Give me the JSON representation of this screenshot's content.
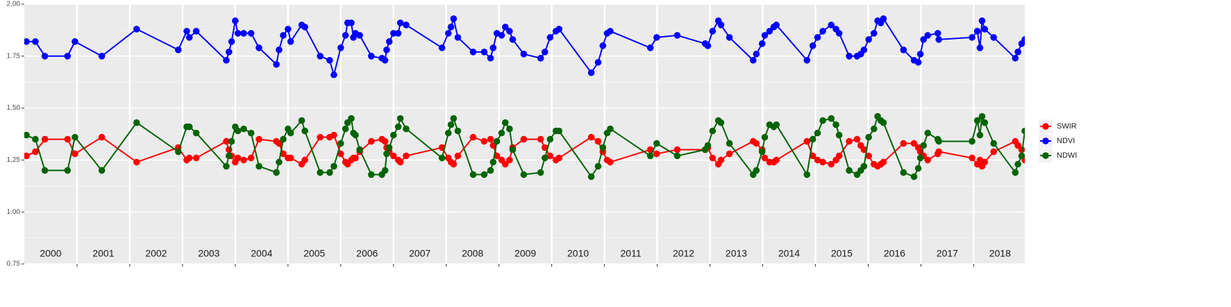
{
  "chart_data": {
    "type": "line",
    "x": [
      2000.04,
      2000.21,
      2000.39,
      2000.82,
      2000.96,
      2001.47,
      2002.13,
      2002.92,
      2003.08,
      2003.13,
      2003.26,
      2003.83,
      2003.88,
      2003.93,
      2004.0,
      2004.05,
      2004.16,
      2004.3,
      2004.45,
      2004.78,
      2004.83,
      2004.91,
      2005.0,
      2005.05,
      2005.26,
      2005.32,
      2005.61,
      2005.79,
      2005.87,
      2006.0,
      2006.09,
      2006.13,
      2006.2,
      2006.24,
      2006.28,
      2006.36,
      2006.58,
      2006.78,
      2006.84,
      2006.87,
      2006.92,
      2007.0,
      2007.09,
      2007.13,
      2007.24,
      2007.92,
      2008.04,
      2008.09,
      2008.14,
      2008.22,
      2008.51,
      2008.72,
      2008.84,
      2008.89,
      2008.96,
      2009.05,
      2009.12,
      2009.2,
      2009.26,
      2009.47,
      2009.79,
      2009.87,
      2009.97,
      2010.08,
      2010.14,
      2010.75,
      2010.88,
      2010.97,
      2011.05,
      2011.11,
      2011.87,
      2011.99,
      2012.38,
      2012.91,
      2012.96,
      2013.05,
      2013.16,
      2013.21,
      2013.37,
      2013.82,
      2013.88,
      2013.99,
      2014.04,
      2014.13,
      2014.21,
      2014.26,
      2014.84,
      2014.95,
      2015.04,
      2015.14,
      2015.3,
      2015.39,
      2015.45,
      2015.64,
      2015.79,
      2015.86,
      2015.92,
      2016.01,
      2016.11,
      2016.18,
      2016.24,
      2016.29,
      2016.67,
      2016.87,
      2016.95,
      2016.99,
      2017.05,
      2017.13,
      2017.32,
      2017.34,
      2017.97,
      2018.07,
      2018.12,
      2018.16,
      2018.21,
      2018.38,
      2018.79,
      2018.84,
      2018.91,
      2018.97
    ],
    "series": [
      {
        "name": "SWIR",
        "color": "#ff0000",
        "values": [
          1.27,
          1.29,
          1.35,
          1.35,
          1.28,
          1.36,
          1.24,
          1.31,
          1.25,
          1.26,
          1.26,
          1.34,
          1.3,
          1.27,
          1.24,
          1.26,
          1.25,
          1.26,
          1.35,
          1.34,
          1.33,
          1.28,
          1.26,
          1.26,
          1.23,
          1.25,
          1.36,
          1.36,
          1.37,
          1.28,
          1.24,
          1.23,
          1.25,
          1.26,
          1.26,
          1.29,
          1.34,
          1.35,
          1.34,
          1.31,
          1.29,
          1.27,
          1.25,
          1.24,
          1.27,
          1.31,
          1.26,
          1.24,
          1.23,
          1.27,
          1.36,
          1.34,
          1.35,
          1.32,
          1.27,
          1.25,
          1.23,
          1.25,
          1.31,
          1.35,
          1.35,
          1.31,
          1.27,
          1.25,
          1.26,
          1.36,
          1.34,
          1.29,
          1.25,
          1.24,
          1.3,
          1.28,
          1.3,
          1.3,
          1.31,
          1.26,
          1.23,
          1.25,
          1.28,
          1.34,
          1.33,
          1.3,
          1.26,
          1.24,
          1.24,
          1.25,
          1.34,
          1.27,
          1.25,
          1.24,
          1.23,
          1.25,
          1.27,
          1.34,
          1.35,
          1.32,
          1.3,
          1.27,
          1.23,
          1.22,
          1.23,
          1.24,
          1.33,
          1.33,
          1.31,
          1.29,
          1.27,
          1.25,
          1.28,
          1.29,
          1.26,
          1.23,
          1.25,
          1.22,
          1.24,
          1.29,
          1.34,
          1.32,
          1.3,
          1.25
        ]
      },
      {
        "name": "NDVI",
        "color": "#0000ff",
        "values": [
          1.82,
          1.82,
          1.75,
          1.75,
          1.82,
          1.75,
          1.88,
          1.78,
          1.87,
          1.84,
          1.87,
          1.73,
          1.77,
          1.82,
          1.92,
          1.86,
          1.86,
          1.86,
          1.79,
          1.71,
          1.78,
          1.85,
          1.88,
          1.82,
          1.9,
          1.89,
          1.75,
          1.73,
          1.66,
          1.79,
          1.85,
          1.91,
          1.91,
          1.84,
          1.86,
          1.85,
          1.75,
          1.74,
          1.73,
          1.78,
          1.82,
          1.86,
          1.86,
          1.91,
          1.9,
          1.79,
          1.86,
          1.89,
          1.93,
          1.84,
          1.77,
          1.77,
          1.74,
          1.79,
          1.86,
          1.85,
          1.89,
          1.87,
          1.83,
          1.76,
          1.74,
          1.77,
          1.84,
          1.87,
          1.88,
          1.67,
          1.72,
          1.8,
          1.86,
          1.87,
          1.79,
          1.84,
          1.85,
          1.81,
          1.8,
          1.87,
          1.92,
          1.9,
          1.84,
          1.73,
          1.76,
          1.81,
          1.85,
          1.87,
          1.89,
          1.9,
          1.73,
          1.8,
          1.84,
          1.87,
          1.9,
          1.88,
          1.86,
          1.75,
          1.75,
          1.76,
          1.78,
          1.83,
          1.86,
          1.92,
          1.91,
          1.93,
          1.78,
          1.73,
          1.72,
          1.76,
          1.83,
          1.85,
          1.86,
          1.83,
          1.84,
          1.87,
          1.79,
          1.92,
          1.88,
          1.84,
          1.74,
          1.77,
          1.81,
          1.83
        ]
      },
      {
        "name": "NDWI",
        "color": "#006400",
        "values": [
          1.37,
          1.35,
          1.2,
          1.2,
          1.36,
          1.2,
          1.43,
          1.29,
          1.41,
          1.41,
          1.38,
          1.22,
          1.27,
          1.34,
          1.41,
          1.39,
          1.4,
          1.38,
          1.22,
          1.19,
          1.24,
          1.35,
          1.4,
          1.38,
          1.44,
          1.39,
          1.19,
          1.19,
          1.22,
          1.33,
          1.4,
          1.43,
          1.45,
          1.38,
          1.37,
          1.3,
          1.18,
          1.18,
          1.2,
          1.28,
          1.31,
          1.37,
          1.41,
          1.45,
          1.4,
          1.26,
          1.38,
          1.42,
          1.45,
          1.39,
          1.18,
          1.18,
          1.2,
          1.24,
          1.34,
          1.38,
          1.43,
          1.4,
          1.3,
          1.18,
          1.19,
          1.26,
          1.35,
          1.39,
          1.39,
          1.17,
          1.22,
          1.31,
          1.38,
          1.4,
          1.27,
          1.33,
          1.27,
          1.3,
          1.32,
          1.39,
          1.44,
          1.43,
          1.33,
          1.18,
          1.2,
          1.29,
          1.36,
          1.42,
          1.41,
          1.42,
          1.18,
          1.35,
          1.38,
          1.44,
          1.45,
          1.42,
          1.37,
          1.2,
          1.18,
          1.2,
          1.22,
          1.36,
          1.4,
          1.46,
          1.44,
          1.43,
          1.19,
          1.17,
          1.21,
          1.26,
          1.32,
          1.38,
          1.35,
          1.34,
          1.34,
          1.44,
          1.37,
          1.46,
          1.43,
          1.33,
          1.19,
          1.23,
          1.27,
          1.39
        ]
      }
    ],
    "xlim": [
      2000,
      2018.97
    ],
    "xticks": [
      {
        "value": 2000.5,
        "label": "2000"
      },
      {
        "value": 2001.5,
        "label": "2001"
      },
      {
        "value": 2002.5,
        "label": "2002"
      },
      {
        "value": 2003.5,
        "label": "2003"
      },
      {
        "value": 2004.5,
        "label": "2004"
      },
      {
        "value": 2005.5,
        "label": "2005"
      },
      {
        "value": 2006.5,
        "label": "2006"
      },
      {
        "value": 2007.5,
        "label": "2007"
      },
      {
        "value": 2008.5,
        "label": "2008"
      },
      {
        "value": 2009.5,
        "label": "2009"
      },
      {
        "value": 2010.5,
        "label": "2010"
      },
      {
        "value": 2011.5,
        "label": "2011"
      },
      {
        "value": 2012.5,
        "label": "2012"
      },
      {
        "value": 2013.5,
        "label": "2013"
      },
      {
        "value": 2014.5,
        "label": "2014"
      },
      {
        "value": 2015.5,
        "label": "2015"
      },
      {
        "value": 2016.5,
        "label": "2016"
      },
      {
        "value": 2017.5,
        "label": "2017"
      },
      {
        "value": 2018.5,
        "label": "2018"
      }
    ],
    "ylim": [
      0.75,
      2.0
    ],
    "yticks": [
      {
        "value": 0.75,
        "label": "0.75"
      },
      {
        "value": 1.0,
        "label": "1.00"
      },
      {
        "value": 1.25,
        "label": "1.25"
      },
      {
        "value": 1.5,
        "label": "1.50"
      },
      {
        "value": 1.75,
        "label": "1.75"
      },
      {
        "value": 2.0,
        "label": "2.00"
      }
    ],
    "grid": true,
    "legend": "right"
  }
}
